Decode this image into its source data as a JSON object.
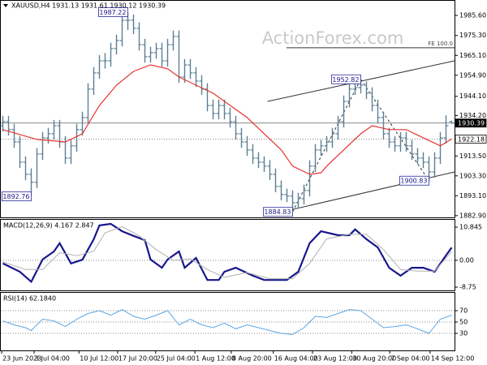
{
  "chart_data": [
    {
      "type": "ohlc",
      "title": "XAUUSD,H4  1931.13 1931.61 1930.12 1930.39",
      "watermark": "ActionForex.com",
      "color": "#5b7f94",
      "xlim": [
        -0.5,
        79.5
      ],
      "xticks": [
        {
          "value": -0.2,
          "label": "23 Jun 2023"
        },
        {
          "value": 5.5,
          "label": "3 Jul 04:00"
        },
        {
          "value": 13.4,
          "label": "10 Jul 12:00"
        },
        {
          "value": 20.2,
          "label": "17 Jul 20:00"
        },
        {
          "value": 26.9,
          "label": "25 Jul 04:00"
        },
        {
          "value": 33.8,
          "label": "1 Aug 12:00"
        },
        {
          "value": 40.2,
          "label": "8 Aug 20:00"
        },
        {
          "value": 47.6,
          "label": "16 Aug 04:00"
        },
        {
          "value": 54.5,
          "label": "23 Aug 12:00"
        },
        {
          "value": 61.4,
          "label": "30 Aug 20:00"
        },
        {
          "value": 68.1,
          "label": "7 Sep 04:00"
        },
        {
          "value": 75.2,
          "label": "14 Sep 12:00"
        }
      ],
      "ylim": [
        1882,
        1993.5
      ],
      "yticks": [
        {
          "value": 1985.6,
          "label": "1985.60"
        },
        {
          "value": 1975.3,
          "label": "1975.30"
        },
        {
          "value": 1965.1,
          "label": "1965.10"
        },
        {
          "value": 1954.9,
          "label": "1954.90"
        },
        {
          "value": 1944.1,
          "label": "1944.10"
        },
        {
          "value": 1934.2,
          "label": "1934.20"
        },
        {
          "value": 1913.5,
          "label": "1913.50"
        },
        {
          "value": 1903.3,
          "label": "1903.30"
        },
        {
          "value": 1893.1,
          "label": "1893.10"
        },
        {
          "value": 1882.9,
          "label": "1882.90"
        }
      ],
      "open": [
        1929,
        1931.1,
        1927,
        1920.7,
        1910.3,
        1904.1,
        1900,
        1914.5,
        1922.8,
        1924.9,
        1929,
        1920.7,
        1912.4,
        1918.7,
        1927,
        1933.2,
        1947.8,
        1956.1,
        1962.3,
        1962.3,
        1968.6,
        1972.7,
        1983.1,
        1983.1,
        1979,
        1970.6,
        1964.4,
        1966.5,
        1968.6,
        1962.3,
        1970.6,
        1974.8,
        1954,
        1960.2,
        1956.1,
        1951.9,
        1947.8,
        1939.4,
        1935.3,
        1939.4,
        1935.3,
        1931.1,
        1924.9,
        1920.7,
        1916.6,
        1912.4,
        1910.3,
        1908.3,
        1904.1,
        1897.9,
        1893.7,
        1892.9,
        1889.5,
        1891.6,
        1895.8,
        1908.3,
        1916.6,
        1918.7,
        1920.7,
        1924.9,
        1931.1,
        1941.5,
        1947.8,
        1948.6,
        1949.8,
        1945.7,
        1939.4,
        1933.2,
        1924.9,
        1920.7,
        1918.7,
        1922.8,
        1918.7,
        1914.5,
        1912.4,
        1910.3,
        1905.3,
        1912.4,
        1922.8,
        1931.13
      ],
      "high": [
        1934.1,
        1934.1,
        1930,
        1923.7,
        1913.3,
        1907.1,
        1917.5,
        1925.8,
        1927.9,
        1932,
        1932,
        1923.7,
        1921.7,
        1930,
        1936.2,
        1950.8,
        1959.1,
        1965.3,
        1966.3,
        1971.6,
        1975.7,
        1986.1,
        1987.22,
        1986.1,
        1982,
        1973.6,
        1969.5,
        1971.6,
        1971.6,
        1973.6,
        1977.8,
        1977.8,
        1963.2,
        1963.2,
        1959.1,
        1954.9,
        1950.8,
        1942.4,
        1942.4,
        1942.4,
        1938.3,
        1934.1,
        1927.9,
        1923.7,
        1919.6,
        1915.4,
        1913.3,
        1911.3,
        1907.1,
        1900.9,
        1896.7,
        1895.9,
        1894.6,
        1898.8,
        1911.3,
        1919.6,
        1921.7,
        1923.7,
        1927.9,
        1934.1,
        1944.5,
        1950.8,
        1951.6,
        1952.82,
        1951.8,
        1948.7,
        1942.4,
        1936.2,
        1927.9,
        1923.7,
        1925.8,
        1925.8,
        1921.7,
        1917.5,
        1915.4,
        1913.3,
        1915.4,
        1925.8,
        1934.3,
        1931.61
      ],
      "low": [
        1926,
        1924,
        1917.7,
        1907.3,
        1901.1,
        1892.76,
        1897,
        1911.5,
        1919.8,
        1921.9,
        1917.7,
        1909.4,
        1909.4,
        1915.7,
        1924,
        1930.2,
        1944.8,
        1953.1,
        1958.3,
        1959.3,
        1965.6,
        1969.7,
        1978.1,
        1976,
        1967.6,
        1961.4,
        1961.4,
        1963.5,
        1959.3,
        1959.3,
        1967.6,
        1951,
        1951,
        1953.1,
        1948.9,
        1944.8,
        1936.4,
        1932.3,
        1932.3,
        1932.3,
        1928.1,
        1921.9,
        1917.7,
        1913.6,
        1909.4,
        1907.3,
        1905.3,
        1901.1,
        1894.9,
        1890.7,
        1889.9,
        1884.83,
        1886.5,
        1888.6,
        1892.8,
        1905.3,
        1913.6,
        1915.7,
        1917.7,
        1921.9,
        1928.1,
        1938.5,
        1944.8,
        1945.6,
        1942.7,
        1936.4,
        1930.2,
        1921.9,
        1917.7,
        1915.7,
        1915.7,
        1915.7,
        1911.5,
        1909.4,
        1907.3,
        1900.83,
        1902.3,
        1909.4,
        1919.8,
        1930.12
      ],
      "close": [
        1931.1,
        1927,
        1920.7,
        1910.3,
        1904.1,
        1900,
        1914.5,
        1922.8,
        1924.9,
        1929,
        1920.7,
        1912.4,
        1918.7,
        1927,
        1933.2,
        1947.8,
        1956.1,
        1962.3,
        1962.3,
        1968.6,
        1972.7,
        1983.1,
        1983.1,
        1979,
        1970.6,
        1964.4,
        1966.5,
        1968.6,
        1962.3,
        1970.6,
        1974.8,
        1954,
        1960.2,
        1956.1,
        1951.9,
        1947.8,
        1939.4,
        1935.3,
        1939.4,
        1935.3,
        1931.1,
        1924.9,
        1920.7,
        1916.6,
        1912.4,
        1910.3,
        1908.3,
        1904.1,
        1897.9,
        1893.7,
        1892.9,
        1889.5,
        1891.6,
        1895.8,
        1908.3,
        1916.6,
        1918.7,
        1920.7,
        1924.9,
        1931.1,
        1941.5,
        1947.8,
        1948.6,
        1949.8,
        1945.7,
        1939.4,
        1933.2,
        1924.9,
        1920.7,
        1918.7,
        1922.8,
        1918.7,
        1914.5,
        1912.4,
        1910.3,
        1905.3,
        1912.4,
        1922.8,
        1929,
        1930.39
      ],
      "ma": {
        "color": "#e8332f",
        "x": [
          0,
          6,
          11,
          14,
          17,
          20,
          23,
          26,
          29,
          31,
          34,
          37,
          40,
          43,
          46,
          49,
          51,
          54,
          56,
          57,
          60,
          63,
          65,
          68,
          71,
          74,
          77,
          79
        ],
        "values": [
          1927,
          1922,
          1920.7,
          1924.9,
          1939.4,
          1949.8,
          1956.9,
          1960.2,
          1958.2,
          1954,
          1949.8,
          1945.7,
          1939.4,
          1933.2,
          1924.9,
          1916.6,
          1908.3,
          1904.1,
          1904.9,
          1908.3,
          1916.6,
          1924.9,
          1929,
          1927,
          1927,
          1922.8,
          1918.7,
          1922.18
        ]
      },
      "levels": [
        {
          "value": 1930.39,
          "label": "1930.39",
          "style": "current"
        },
        {
          "value": 1922.18,
          "label": "1922.18",
          "style": "dotted"
        }
      ],
      "annotations": [
        {
          "x": 22,
          "value": 1987.22,
          "label": "1987.22"
        },
        {
          "x": 5,
          "value": 1892.76,
          "label": "1892.76"
        },
        {
          "x": 51,
          "value": 1884.83,
          "label": "1884.83"
        },
        {
          "x": 63,
          "value": 1952.82,
          "label": "1952.82"
        },
        {
          "x": 75,
          "value": 1900.83,
          "label": "1900.83"
        }
      ],
      "trendlines": [
        {
          "x": [
            46.6,
            79.5
          ],
          "values": [
            1941.5,
            1962.3
          ],
          "style": "solid"
        },
        {
          "x": [
            48.8,
            79.5
          ],
          "values": [
            1884.6,
            1905.3
          ],
          "style": "solid"
        },
        {
          "x": [
            51,
            63
          ],
          "values": [
            1884.83,
            1952.82
          ],
          "style": "dashed"
        },
        {
          "x": [
            63,
            75
          ],
          "values": [
            1952.82,
            1900.83
          ],
          "style": "dashed"
        }
      ],
      "fe": {
        "x": [
          49.9,
          79.5
        ],
        "value": 1969,
        "label": "FE 100.0"
      }
    },
    {
      "type": "macd",
      "title": "MACD(12,26,9) 4.167 2.847",
      "xlim": [
        -0.5,
        79.5
      ],
      "ylim": [
        -9.8,
        13.5
      ],
      "yticks": [
        10.845,
        {
          "value": 0,
          "label": "0.00"
        },
        -8.75
      ],
      "zeroline": true,
      "series": [
        {
          "name": "MACD",
          "color": "#17178a",
          "width": 2.2,
          "x": [
            0,
            3,
            5,
            7,
            9,
            10,
            12,
            14,
            16,
            17,
            19,
            21,
            23,
            25,
            26,
            28,
            29,
            31,
            32,
            34,
            36,
            38,
            39,
            41,
            44,
            46,
            48,
            50,
            52,
            54,
            56,
            59,
            61,
            62,
            64,
            66,
            68,
            70,
            72,
            74,
            76,
            78,
            79
          ],
          "values": [
            -1,
            -3.7,
            -7,
            0.3,
            2.9,
            5.6,
            -1,
            0.2,
            6.9,
            11.4,
            11.9,
            9.5,
            8,
            6.6,
            0.3,
            -2.4,
            0.3,
            2.9,
            -2.4,
            0.8,
            -6.4,
            -6.4,
            -3.7,
            -2.4,
            -5,
            -6.4,
            -6.4,
            -6.4,
            -3.7,
            5.6,
            9.5,
            8.2,
            8.2,
            10.1,
            6.9,
            4.2,
            -2.4,
            -5,
            -2.4,
            -2.4,
            -3.7,
            1.6,
            4.167
          ]
        },
        {
          "name": "Signal",
          "color": "#b0b0b0",
          "width": 1,
          "x": [
            0,
            4,
            7,
            10,
            13,
            16,
            18,
            21,
            24,
            27,
            30,
            33,
            36,
            39,
            43,
            47,
            51,
            54,
            57,
            61,
            64,
            67,
            70,
            73,
            76,
            79
          ],
          "values": [
            -0.5,
            -3,
            -3,
            2.5,
            1.5,
            3,
            9,
            11,
            8,
            3.5,
            0,
            0.5,
            -3,
            -5.5,
            -4,
            -6,
            -6,
            -1,
            7,
            8.5,
            8.5,
            3.5,
            -3,
            -3.5,
            -3.5,
            2.847
          ]
        }
      ]
    },
    {
      "type": "line",
      "title": "RSI(14) 62.1840",
      "xlim": [
        -0.5,
        79.5
      ],
      "ylim": [
        0,
        100
      ],
      "yticks": [
        70,
        50,
        30
      ],
      "series": [
        {
          "name": "RSI",
          "color": "#5aa6e6",
          "width": 1,
          "x": [
            0,
            2,
            4,
            5,
            7,
            9,
            11,
            13,
            15,
            17,
            19,
            21,
            23,
            25,
            27,
            29,
            31,
            33,
            35,
            37,
            39,
            41,
            43,
            45,
            47,
            49,
            51,
            53,
            55,
            57,
            59,
            61,
            63,
            65,
            67,
            69,
            71,
            73,
            75,
            77,
            79
          ],
          "values": [
            52,
            45,
            40,
            35,
            55,
            52,
            42,
            55,
            65,
            70,
            62,
            72,
            60,
            55,
            62,
            70,
            45,
            55,
            45,
            40,
            48,
            38,
            45,
            40,
            35,
            30,
            28,
            40,
            60,
            58,
            65,
            72,
            70,
            55,
            40,
            42,
            45,
            38,
            30,
            55,
            62.184
          ]
        }
      ]
    }
  ]
}
